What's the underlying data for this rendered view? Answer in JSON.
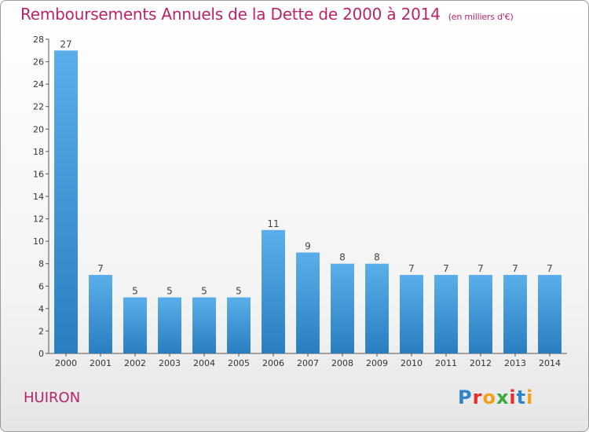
{
  "header": {
    "title": "Remboursements Annuels de la Dette de 2000 à 2014",
    "unit": "(en milliers d'€)"
  },
  "footer": {
    "commune": "HUIRON",
    "logo_text": "Proxiti"
  },
  "chart_data": {
    "type": "bar",
    "title": "Remboursements Annuels de la Dette de 2000 à 2014",
    "subtitle": "(en milliers d'€)",
    "xlabel": "",
    "ylabel": "",
    "categories": [
      "2000",
      "2001",
      "2002",
      "2003",
      "2004",
      "2005",
      "2006",
      "2007",
      "2008",
      "2009",
      "2010",
      "2011",
      "2012",
      "2013",
      "2014"
    ],
    "values": [
      27,
      7,
      5,
      5,
      5,
      5,
      11,
      9,
      8,
      8,
      7,
      7,
      7,
      7,
      7
    ],
    "ylim": [
      0,
      28
    ],
    "yticks": [
      0,
      2,
      4,
      6,
      8,
      10,
      12,
      14,
      16,
      18,
      20,
      22,
      24,
      26,
      28
    ],
    "grid": false,
    "colors": {
      "bar_light": "#5aaeea",
      "bar_dark": "#2a7ec0",
      "title": "#b8246a"
    }
  }
}
